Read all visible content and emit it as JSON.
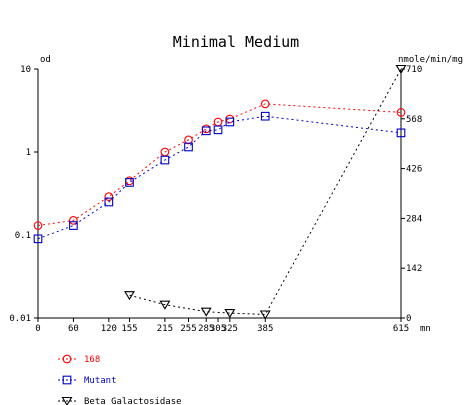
{
  "chart_data": {
    "type": "line",
    "title": "Minimal Medium",
    "left_axis_unit": "od",
    "right_axis_unit": "nmole/min/mg",
    "x_unit": "mn",
    "x_range": [
      0,
      615
    ],
    "x_ticks": [
      0,
      60,
      120,
      155,
      215,
      255,
      285,
      305,
      325,
      385,
      615
    ],
    "x_tick_labels": [
      "0",
      "60",
      "120",
      "155",
      "215",
      "255",
      "285",
      "305",
      "325",
      "385",
      "615"
    ],
    "y_left": {
      "scale": "log",
      "range": [
        0.01,
        10
      ],
      "ticks": [
        0.01,
        0.1,
        1,
        10
      ],
      "tick_labels": [
        "0.01",
        "0.1",
        "1",
        "10"
      ]
    },
    "y_right": {
      "scale": "linear",
      "range": [
        0,
        710
      ],
      "ticks": [
        0,
        142,
        284,
        426,
        568,
        710
      ],
      "tick_labels": [
        "0",
        "142",
        "284",
        "426",
        "568",
        "710"
      ]
    },
    "grid": false,
    "legend_position": "bottom-left",
    "series": [
      {
        "name": "168",
        "axis": "left",
        "color": "#ff0000",
        "marker": "circle",
        "x": [
          0,
          60,
          120,
          155,
          215,
          255,
          285,
          305,
          325,
          385,
          615
        ],
        "y": [
          0.13,
          0.15,
          0.29,
          0.45,
          1.0,
          1.4,
          1.9,
          2.3,
          2.5,
          3.8,
          3.0
        ]
      },
      {
        "name": "Mutant",
        "axis": "left",
        "color": "#0000cc",
        "marker": "square",
        "x": [
          0,
          60,
          120,
          155,
          215,
          255,
          285,
          305,
          325,
          385,
          615
        ],
        "y": [
          0.09,
          0.13,
          0.25,
          0.43,
          0.8,
          1.15,
          1.8,
          1.85,
          2.3,
          2.7,
          1.7
        ]
      },
      {
        "name": "Beta Galactosidase",
        "axis": "right",
        "color": "#000000",
        "marker": "triangle-down",
        "x": [
          155,
          215,
          285,
          325,
          385,
          615
        ],
        "y": [
          65,
          38,
          18,
          14,
          10,
          710
        ]
      }
    ]
  }
}
